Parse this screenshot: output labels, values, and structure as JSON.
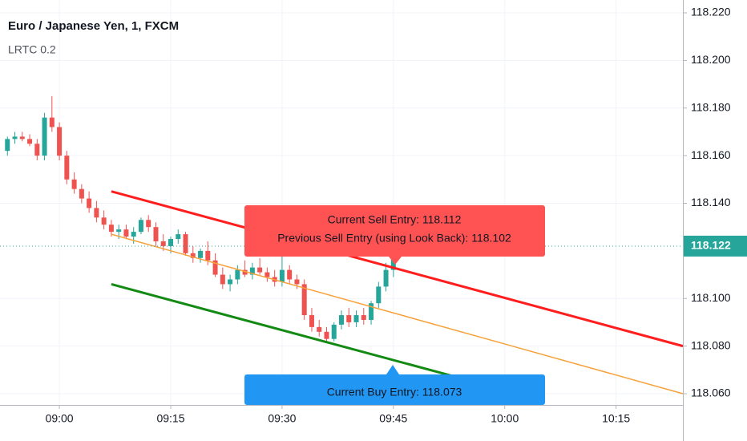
{
  "header": {
    "title": "Euro / Japanese Yen, 1, FXCM",
    "indicator": "LRTC 0.2"
  },
  "chart_data": {
    "type": "candlestick",
    "xlim": [
      "08:52",
      "10:24"
    ],
    "xticks": [
      "09:00",
      "09:15",
      "09:30",
      "09:45",
      "10:00",
      "10:15"
    ],
    "ylim": [
      118.06,
      118.22
    ],
    "yticks": [
      {
        "value": 118.22,
        "label": "118.220"
      },
      {
        "value": 118.2,
        "label": "118.200"
      },
      {
        "value": 118.18,
        "label": "118.180"
      },
      {
        "value": 118.16,
        "label": "118.160"
      },
      {
        "value": 118.14,
        "label": "118.140"
      },
      {
        "value": 118.1,
        "label": "118.100"
      },
      {
        "value": 118.08,
        "label": "118.080"
      },
      {
        "value": 118.06,
        "label": "118.060"
      }
    ],
    "grid": true,
    "up_color": "#26a69a",
    "down_color": "#ef5350",
    "candles": {
      "x": [
        "08:53",
        "08:54",
        "08:55",
        "08:56",
        "08:57",
        "08:58",
        "08:59",
        "09:00",
        "09:01",
        "09:02",
        "09:03",
        "09:04",
        "09:05",
        "09:06",
        "09:07",
        "09:08",
        "09:09",
        "09:10",
        "09:11",
        "09:12",
        "09:13",
        "09:14",
        "09:15",
        "09:16",
        "09:17",
        "09:18",
        "09:19",
        "09:20",
        "09:21",
        "09:22",
        "09:23",
        "09:24",
        "09:25",
        "09:26",
        "09:27",
        "09:28",
        "09:29",
        "09:30",
        "09:31",
        "09:32",
        "09:33",
        "09:34",
        "09:35",
        "09:36",
        "09:37",
        "09:38",
        "09:39",
        "09:40",
        "09:41",
        "09:42",
        "09:43",
        "09:44",
        "09:45"
      ],
      "open": [
        118.162,
        118.167,
        118.168,
        118.167,
        118.165,
        118.16,
        118.176,
        118.172,
        118.16,
        118.15,
        118.146,
        118.142,
        118.138,
        118.134,
        118.131,
        118.128,
        118.129,
        118.126,
        118.128,
        118.133,
        118.13,
        118.124,
        118.122,
        118.125,
        118.127,
        118.119,
        118.117,
        118.12,
        118.116,
        118.11,
        118.106,
        118.108,
        118.112,
        118.11,
        118.113,
        118.111,
        118.109,
        118.107,
        118.112,
        118.108,
        118.106,
        118.093,
        118.088,
        118.086,
        118.083,
        118.089,
        118.093,
        118.09,
        118.093,
        118.091,
        118.098,
        118.105,
        118.112
      ],
      "high": [
        118.168,
        118.17,
        118.17,
        118.169,
        118.167,
        118.178,
        118.185,
        118.174,
        118.162,
        118.153,
        118.148,
        118.145,
        118.141,
        118.137,
        118.133,
        118.131,
        118.131,
        118.13,
        118.134,
        118.135,
        118.132,
        118.127,
        118.126,
        118.129,
        118.128,
        118.122,
        118.121,
        118.124,
        118.119,
        118.113,
        118.11,
        118.114,
        118.116,
        118.115,
        118.117,
        118.113,
        118.112,
        118.118,
        118.114,
        118.11,
        118.108,
        118.096,
        118.091,
        118.088,
        118.09,
        118.095,
        118.096,
        118.095,
        118.096,
        118.099,
        118.107,
        118.115,
        118.125
      ],
      "low": [
        118.16,
        118.165,
        118.166,
        118.164,
        118.158,
        118.158,
        118.17,
        118.158,
        118.148,
        118.144,
        118.14,
        118.136,
        118.132,
        118.129,
        118.126,
        118.125,
        118.125,
        118.123,
        118.127,
        118.128,
        118.122,
        118.12,
        118.119,
        118.123,
        118.118,
        118.115,
        118.115,
        118.114,
        118.109,
        118.104,
        118.103,
        118.106,
        118.109,
        118.108,
        118.11,
        118.107,
        118.105,
        118.105,
        118.106,
        118.104,
        118.091,
        118.086,
        118.084,
        118.082,
        118.082,
        118.087,
        118.088,
        118.088,
        118.089,
        118.089,
        118.096,
        118.103,
        118.109
      ],
      "close": [
        118.167,
        118.168,
        118.167,
        118.165,
        118.16,
        118.176,
        118.172,
        118.16,
        118.15,
        118.146,
        118.142,
        118.138,
        118.134,
        118.131,
        118.128,
        118.129,
        118.126,
        118.128,
        118.133,
        118.13,
        118.124,
        118.122,
        118.125,
        118.127,
        118.119,
        118.117,
        118.12,
        118.116,
        118.11,
        118.106,
        118.108,
        118.112,
        118.11,
        118.113,
        118.111,
        118.109,
        118.107,
        118.112,
        118.108,
        118.106,
        118.093,
        118.088,
        118.086,
        118.083,
        118.089,
        118.093,
        118.09,
        118.093,
        118.091,
        118.098,
        118.105,
        118.112,
        118.122
      ]
    },
    "lines": [
      {
        "color": "#ff1e1e",
        "x": [
          "09:07",
          "10:24"
        ],
        "values": [
          118.145,
          118.08
        ]
      },
      {
        "color": "#f7a13a",
        "x": [
          "09:07",
          "10:24"
        ],
        "values": [
          118.127,
          118.06
        ]
      },
      {
        "color": "#138a13",
        "x": [
          "09:07",
          "10:03"
        ],
        "values": [
          118.106,
          118.059
        ]
      }
    ],
    "last_price": 118.122,
    "annotations": [
      {
        "text": "Current Sell Entry: 118.112",
        "color": "#ff5252"
      },
      {
        "text": "Previous Sell Entry (using Look Back): 118.102",
        "color": "#ff5252"
      },
      {
        "text": "Current Buy Entry: 118.073",
        "color": "#2196f3"
      }
    ]
  }
}
